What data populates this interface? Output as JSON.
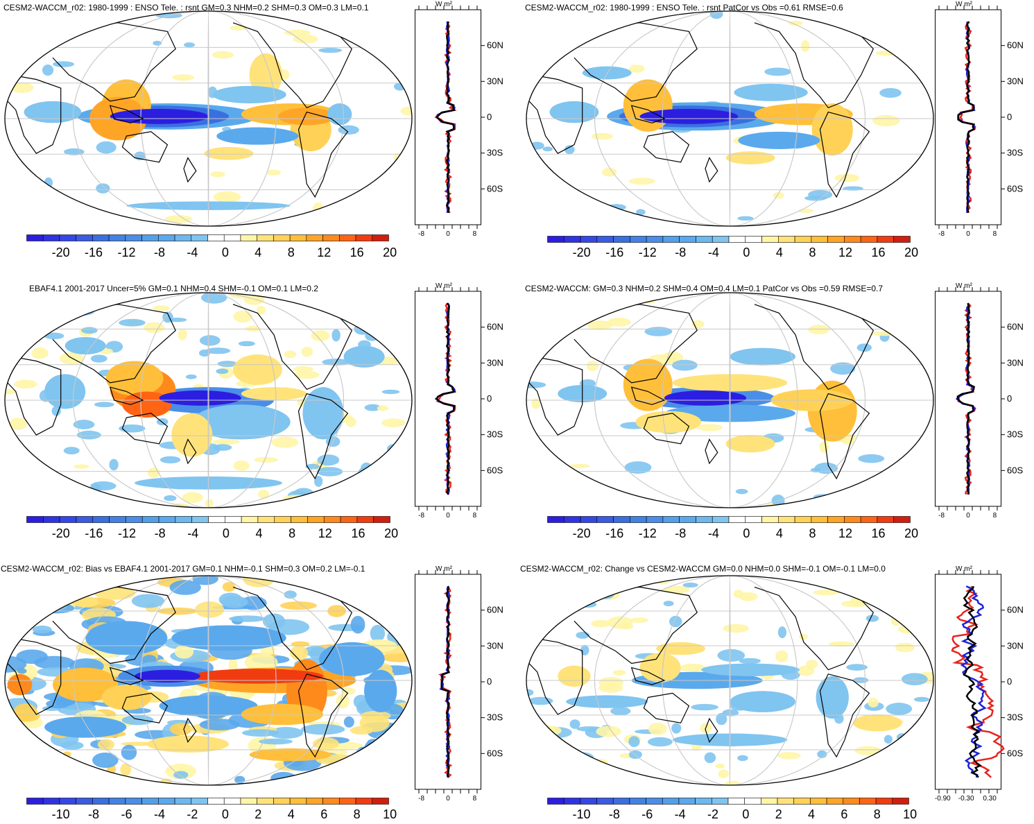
{
  "chart_data": [
    {
      "type": "map",
      "title": "CESM2-WACCM_r02: 1980-1999 : ENSO Tele. : rsnt GM=0.3 NHM=0.2 SHM=0.3 OM=0.3 LM=0.1",
      "colorbar": {
        "ticks": [
          "-20",
          "-16",
          "-12",
          "-8",
          "-4",
          "0",
          "4",
          "8",
          "12",
          "16",
          "20"
        ]
      },
      "zonal": {
        "unit": "W m²",
        "lat_labels": [
          "60N",
          "30N",
          "0",
          "30S",
          "60S"
        ],
        "x_ticks": [
          "-8",
          "0",
          "8"
        ],
        "xlim": [
          -10,
          10
        ]
      }
    },
    {
      "type": "map",
      "title": "CESM2-WACCM_r02: 1980-1999 : ENSO Tele. : rsnt PatCor vs Obs =0.61 RMSE=0.6",
      "colorbar": {
        "ticks": [
          "-20",
          "-16",
          "-12",
          "-8",
          "-4",
          "0",
          "4",
          "8",
          "12",
          "16",
          "20"
        ]
      },
      "zonal": {
        "unit": "W m²",
        "lat_labels": [
          "60N",
          "30N",
          "0",
          "30S",
          "60S"
        ],
        "x_ticks": [
          "-8",
          "0",
          "8"
        ],
        "xlim": [
          -10,
          10
        ]
      }
    },
    {
      "type": "map",
      "title": "EBAF4.1 2001-2017 Uncer=5% GM=0.1 NHM=0.4 SHM=-0.1 OM=0.1 LM=0.2",
      "colorbar": {
        "ticks": [
          "-20",
          "-16",
          "-12",
          "-8",
          "-4",
          "0",
          "4",
          "8",
          "12",
          "16",
          "20"
        ]
      },
      "zonal": {
        "unit": "W m²",
        "lat_labels": [
          "60N",
          "30N",
          "0",
          "30S",
          "60S"
        ],
        "x_ticks": [
          "-8",
          "0",
          "8"
        ],
        "xlim": [
          -10,
          10
        ]
      }
    },
    {
      "type": "map",
      "title": "CESM2-WACCM: GM=0.3 NHM=0.2 SHM=0.4 OM=0.4 LM=0.1 PatCor vs Obs =0.59 RMSE=0.7",
      "colorbar": {
        "ticks": [
          "-20",
          "-16",
          "-12",
          "-8",
          "-4",
          "0",
          "4",
          "8",
          "12",
          "16",
          "20"
        ]
      },
      "zonal": {
        "unit": "W m²",
        "lat_labels": [
          "60N",
          "30N",
          "0",
          "30S",
          "60S"
        ],
        "x_ticks": [
          "-8",
          "0",
          "8"
        ],
        "xlim": [
          -10,
          10
        ]
      }
    },
    {
      "type": "map",
      "title": "CESM2-WACCM_r02: Bias vs EBAF4.1 2001-2017 GM=0.1 NHM=-0.1 SHM=0.3 OM=0.2 LM=-0.1",
      "colorbar": {
        "ticks": [
          "-10",
          "-8",
          "-6",
          "-4",
          "-2",
          "0",
          "2",
          "4",
          "6",
          "8",
          "10"
        ]
      },
      "zonal": {
        "unit": "W m²",
        "lat_labels": [
          "60N",
          "30N",
          "0",
          "30S",
          "60S"
        ],
        "x_ticks": [
          "-8",
          "0",
          "8"
        ],
        "xlim": [
          -10,
          10
        ]
      }
    },
    {
      "type": "map",
      "title": "CESM2-WACCM_r02: Change vs CESM2-WACCM GM=0.0 NHM=0.0 SHM=-0.1 OM=-0.1 LM=0.0",
      "colorbar": {
        "ticks": [
          "-10",
          "-8",
          "-6",
          "-4",
          "-2",
          "0",
          "2",
          "4",
          "6",
          "8",
          "10"
        ]
      },
      "zonal": {
        "unit": "W m²",
        "lat_labels": [
          "60N",
          "30N",
          "0",
          "30S",
          "60S"
        ],
        "x_ticks": [
          "-0.90",
          "-0.30",
          "0.30"
        ],
        "xlim": [
          -1.1,
          0.6
        ]
      }
    }
  ],
  "colors": {
    "palette": [
      "#2c1ee0",
      "#3547e6",
      "#3a6fe0",
      "#4a8ee8",
      "#5aa9ec",
      "#80c4f0",
      "#ffffff",
      "#ffffff",
      "#fff5a6",
      "#ffe37a",
      "#ffd257",
      "#ffbf3a",
      "#ffa526",
      "#ff8a1c",
      "#ff6414",
      "#f03c10",
      "#d21e0e"
    ],
    "line_red": "#e8231c",
    "line_blue": "#1a23d6",
    "line_black": "#000000"
  }
}
